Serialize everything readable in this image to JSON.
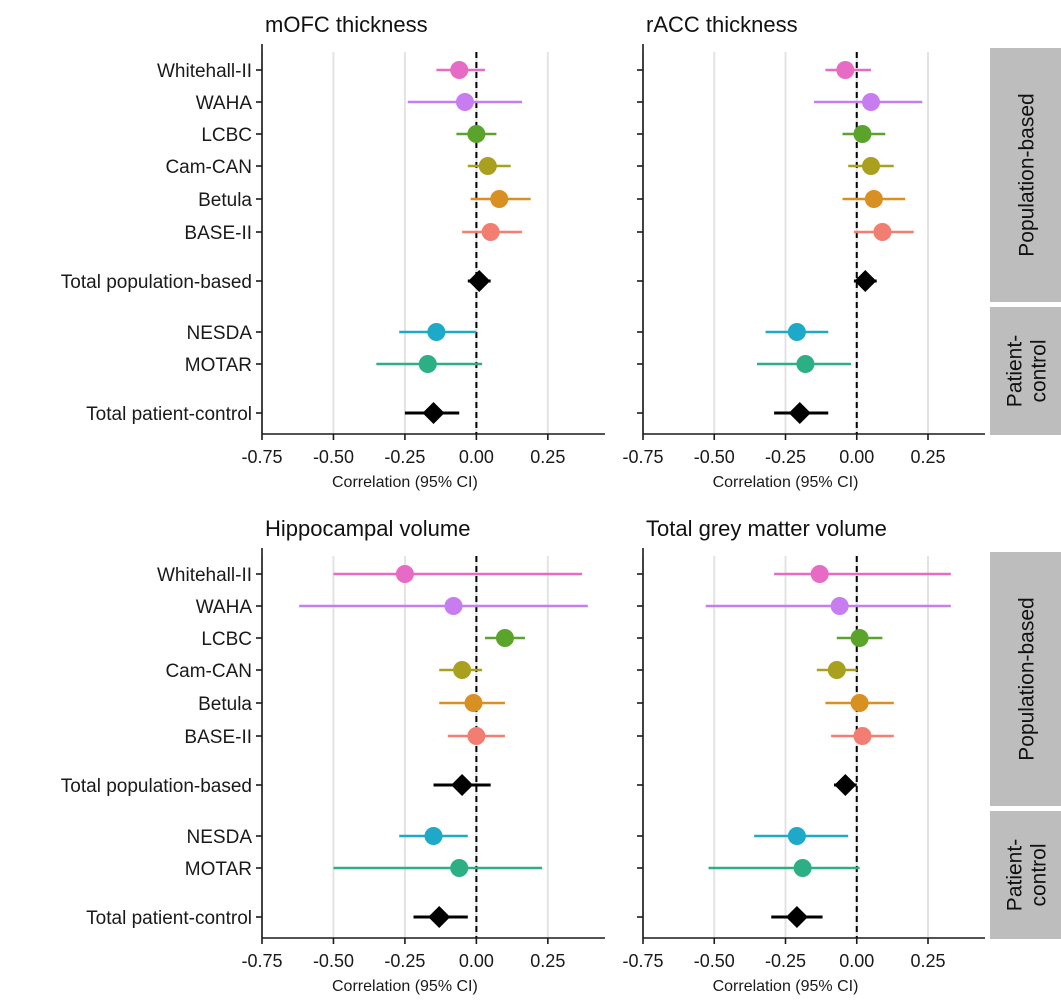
{
  "chart_data": [
    {
      "type": "forest",
      "title": "mOFC thickness",
      "xlabel": "Correlation (95% CI)",
      "xticks": [
        -0.75,
        -0.5,
        -0.25,
        0.0,
        0.25
      ],
      "xtick_labels": [
        "-0.75",
        "-0.50",
        "-0.25",
        "0.00",
        "0.25"
      ],
      "xlim": [
        -0.75,
        0.45
      ],
      "rows": [
        {
          "label": "Whitehall-II",
          "group": "Population-based",
          "est": -0.06,
          "lo": -0.14,
          "hi": 0.03,
          "color": "#E76BC5"
        },
        {
          "label": "WAHA",
          "group": "Population-based",
          "est": -0.04,
          "lo": -0.24,
          "hi": 0.16,
          "color": "#C77CF0"
        },
        {
          "label": "LCBC",
          "group": "Population-based",
          "est": 0.0,
          "lo": -0.07,
          "hi": 0.07,
          "color": "#5BA42B"
        },
        {
          "label": "Cam-CAN",
          "group": "Population-based",
          "est": 0.04,
          "lo": -0.03,
          "hi": 0.12,
          "color": "#A9A01E"
        },
        {
          "label": "Betula",
          "group": "Population-based",
          "est": 0.08,
          "lo": -0.02,
          "hi": 0.19,
          "color": "#D89022"
        },
        {
          "label": "BASE-II",
          "group": "Population-based",
          "est": 0.05,
          "lo": -0.05,
          "hi": 0.16,
          "color": "#F27E72"
        },
        {
          "label": "Total population-based",
          "group": "Population-based",
          "est": 0.01,
          "lo": -0.03,
          "hi": 0.05,
          "color": "#000000",
          "summary": true
        },
        {
          "label": "NESDA",
          "group": "Patient-control",
          "est": -0.14,
          "lo": -0.27,
          "hi": 0.0,
          "color": "#1FA9C9"
        },
        {
          "label": "MOTAR",
          "group": "Patient-control",
          "est": -0.17,
          "lo": -0.35,
          "hi": 0.02,
          "color": "#2DAF85"
        },
        {
          "label": "Total patient-control",
          "group": "Patient-control",
          "est": -0.15,
          "lo": -0.25,
          "hi": -0.06,
          "color": "#000000",
          "summary": true
        }
      ]
    },
    {
      "type": "forest",
      "title": "rACC thickness",
      "xlabel": "Correlation (95% CI)",
      "xticks": [
        -0.75,
        -0.5,
        -0.25,
        0.0,
        0.25
      ],
      "xtick_labels": [
        "-0.75",
        "-0.50",
        "-0.25",
        "0.00",
        "0.25"
      ],
      "xlim": [
        -0.75,
        0.45
      ],
      "rows": [
        {
          "label": "Whitehall-II",
          "group": "Population-based",
          "est": -0.04,
          "lo": -0.11,
          "hi": 0.05,
          "color": "#E76BC5"
        },
        {
          "label": "WAHA",
          "group": "Population-based",
          "est": 0.05,
          "lo": -0.15,
          "hi": 0.23,
          "color": "#C77CF0"
        },
        {
          "label": "LCBC",
          "group": "Population-based",
          "est": 0.02,
          "lo": -0.05,
          "hi": 0.1,
          "color": "#5BA42B"
        },
        {
          "label": "Cam-CAN",
          "group": "Population-based",
          "est": 0.05,
          "lo": -0.03,
          "hi": 0.13,
          "color": "#A9A01E"
        },
        {
          "label": "Betula",
          "group": "Population-based",
          "est": 0.06,
          "lo": -0.05,
          "hi": 0.17,
          "color": "#D89022"
        },
        {
          "label": "BASE-II",
          "group": "Population-based",
          "est": 0.09,
          "lo": -0.01,
          "hi": 0.2,
          "color": "#F27E72"
        },
        {
          "label": "Total population-based",
          "group": "Population-based",
          "est": 0.03,
          "lo": -0.01,
          "hi": 0.07,
          "color": "#000000",
          "summary": true
        },
        {
          "label": "NESDA",
          "group": "Patient-control",
          "est": -0.21,
          "lo": -0.32,
          "hi": -0.1,
          "color": "#1FA9C9"
        },
        {
          "label": "MOTAR",
          "group": "Patient-control",
          "est": -0.18,
          "lo": -0.35,
          "hi": -0.02,
          "color": "#2DAF85"
        },
        {
          "label": "Total patient-control",
          "group": "Patient-control",
          "est": -0.2,
          "lo": -0.29,
          "hi": -0.1,
          "color": "#000000",
          "summary": true
        }
      ]
    },
    {
      "type": "forest",
      "title": "Hippocampal volume",
      "xlabel": "Correlation (95% CI)",
      "xticks": [
        -0.75,
        -0.5,
        -0.25,
        0.0,
        0.25
      ],
      "xtick_labels": [
        "-0.75",
        "-0.50",
        "-0.25",
        "0.00",
        "0.25"
      ],
      "xlim": [
        -0.75,
        0.45
      ],
      "rows": [
        {
          "label": "Whitehall-II",
          "group": "Population-based",
          "est": -0.25,
          "lo": -0.5,
          "hi": 0.37,
          "color": "#E76BC5"
        },
        {
          "label": "WAHA",
          "group": "Population-based",
          "est": -0.08,
          "lo": -0.62,
          "hi": 0.39,
          "color": "#C77CF0"
        },
        {
          "label": "LCBC",
          "group": "Population-based",
          "est": 0.1,
          "lo": 0.03,
          "hi": 0.17,
          "color": "#5BA42B"
        },
        {
          "label": "Cam-CAN",
          "group": "Population-based",
          "est": -0.05,
          "lo": -0.13,
          "hi": 0.02,
          "color": "#A9A01E"
        },
        {
          "label": "Betula",
          "group": "Population-based",
          "est": -0.01,
          "lo": -0.13,
          "hi": 0.1,
          "color": "#D89022"
        },
        {
          "label": "BASE-II",
          "group": "Population-based",
          "est": 0.0,
          "lo": -0.1,
          "hi": 0.1,
          "color": "#F27E72"
        },
        {
          "label": "Total population-based",
          "group": "Population-based",
          "est": -0.05,
          "lo": -0.15,
          "hi": 0.05,
          "color": "#000000",
          "summary": true
        },
        {
          "label": "NESDA",
          "group": "Patient-control",
          "est": -0.15,
          "lo": -0.27,
          "hi": -0.03,
          "color": "#1FA9C9"
        },
        {
          "label": "MOTAR",
          "group": "Patient-control",
          "est": -0.06,
          "lo": -0.5,
          "hi": 0.23,
          "color": "#2DAF85"
        },
        {
          "label": "Total patient-control",
          "group": "Patient-control",
          "est": -0.13,
          "lo": -0.22,
          "hi": -0.03,
          "color": "#000000",
          "summary": true
        }
      ]
    },
    {
      "type": "forest",
      "title": "Total grey matter volume",
      "xlabel": "Correlation (95% CI)",
      "xticks": [
        -0.75,
        -0.5,
        -0.25,
        0.0,
        0.25
      ],
      "xtick_labels": [
        "-0.75",
        "-0.50",
        "-0.25",
        "0.00",
        "0.25"
      ],
      "xlim": [
        -0.75,
        0.45
      ],
      "rows": [
        {
          "label": "Whitehall-II",
          "group": "Population-based",
          "est": -0.13,
          "lo": -0.29,
          "hi": 0.33,
          "color": "#E76BC5"
        },
        {
          "label": "WAHA",
          "group": "Population-based",
          "est": -0.06,
          "lo": -0.53,
          "hi": 0.33,
          "color": "#C77CF0"
        },
        {
          "label": "LCBC",
          "group": "Population-based",
          "est": 0.01,
          "lo": -0.07,
          "hi": 0.09,
          "color": "#5BA42B"
        },
        {
          "label": "Cam-CAN",
          "group": "Population-based",
          "est": -0.07,
          "lo": -0.14,
          "hi": 0.0,
          "color": "#A9A01E"
        },
        {
          "label": "Betula",
          "group": "Population-based",
          "est": 0.01,
          "lo": -0.11,
          "hi": 0.13,
          "color": "#D89022"
        },
        {
          "label": "BASE-II",
          "group": "Population-based",
          "est": 0.02,
          "lo": -0.09,
          "hi": 0.13,
          "color": "#F27E72"
        },
        {
          "label": "Total population-based",
          "group": "Population-based",
          "est": -0.04,
          "lo": -0.08,
          "hi": 0.0,
          "color": "#000000",
          "summary": true
        },
        {
          "label": "NESDA",
          "group": "Patient-control",
          "est": -0.21,
          "lo": -0.36,
          "hi": -0.03,
          "color": "#1FA9C9"
        },
        {
          "label": "MOTAR",
          "group": "Patient-control",
          "est": -0.19,
          "lo": -0.52,
          "hi": 0.01,
          "color": "#2DAF85"
        },
        {
          "label": "Total patient-control",
          "group": "Patient-control",
          "est": -0.21,
          "lo": -0.3,
          "hi": -0.12,
          "color": "#000000",
          "summary": true
        }
      ]
    }
  ],
  "strips": {
    "population": "Population-based",
    "patient_line1": "Patient-",
    "patient_line2": "control"
  }
}
